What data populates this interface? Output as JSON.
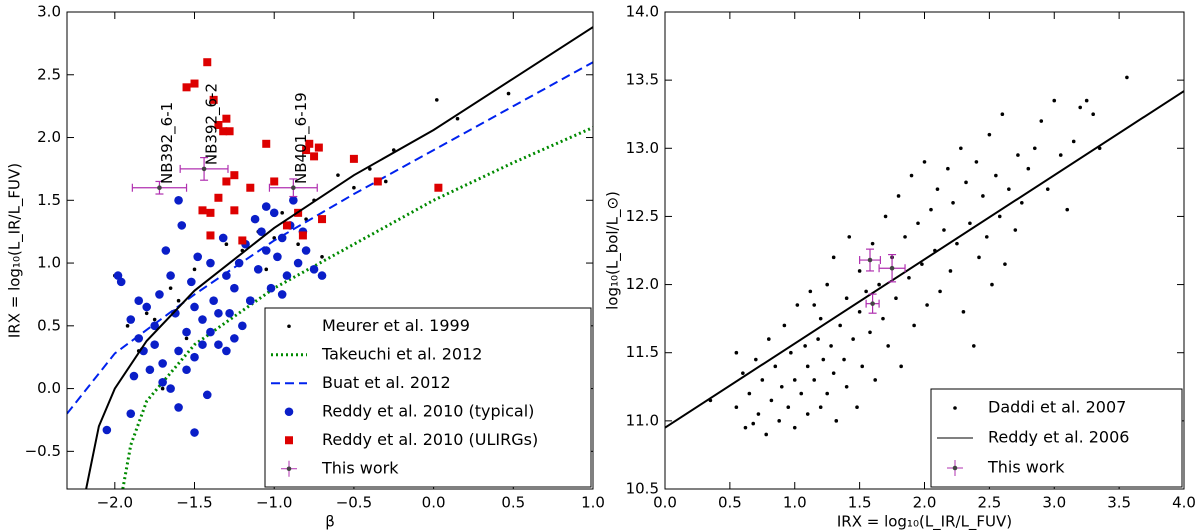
{
  "chart_data": [
    {
      "type": "scatter",
      "xlabel": "β",
      "ylabel": "IRX = log₁₀(L_IR/L_FUV)",
      "xlim": [
        -2.3,
        1.0
      ],
      "ylim": [
        -0.8,
        3.0
      ],
      "xticks": [
        {
          "value": -2.0,
          "label": "−2.0"
        },
        {
          "value": -1.5,
          "label": "−1.5"
        },
        {
          "value": -1.0,
          "label": "−1.0"
        },
        {
          "value": -0.5,
          "label": "−0.5"
        },
        {
          "value": 0.0,
          "label": "0.0"
        },
        0.5,
        {
          "value": 1.0,
          "label": "1.0"
        }
      ],
      "yticks": [
        {
          "value": -0.5,
          "label": "−0.5"
        },
        {
          "value": 0.0,
          "label": "0.0"
        },
        0.5,
        {
          "value": 1.0,
          "label": "1.0"
        },
        1.5,
        {
          "value": 2.0,
          "label": "2.0"
        },
        2.5,
        {
          "value": 3.0,
          "label": "3.0"
        }
      ],
      "legend": "lower right",
      "series": [
        {
          "name": "Meurer et al. 1999",
          "marker": "dot",
          "color": "#000000",
          "x": [
            -2.0,
            -1.92,
            -1.85,
            -1.75,
            -1.7,
            -1.6,
            -1.5,
            -1.4,
            -1.3,
            -1.2,
            -1.1,
            -1.0,
            -0.95,
            -0.9,
            -0.85,
            -0.8,
            -0.75,
            -0.6,
            -0.5,
            -0.4,
            -0.25,
            0.02,
            0.15,
            0.47,
            -1.8,
            -1.65,
            -1.55,
            -1.05,
            -0.7,
            -0.3
          ],
          "values": [
            0.9,
            0.5,
            0.3,
            0.55,
            0.0,
            0.7,
            0.95,
            1.0,
            1.15,
            1.1,
            1.25,
            1.2,
            1.4,
            1.3,
            1.15,
            1.35,
            1.5,
            1.7,
            1.6,
            1.75,
            1.9,
            2.3,
            2.15,
            2.35,
            0.6,
            0.8,
            0.4,
            0.95,
            1.05,
            1.65
          ]
        },
        {
          "name": "Takeuchi et al. 2012",
          "linestyle": "dotted",
          "color": "#008a00",
          "x": [
            -1.95,
            -1.9,
            -1.8,
            -1.5,
            -1.0,
            -0.5,
            0.0,
            0.5,
            1.0
          ],
          "values": [
            -0.8,
            -0.45,
            -0.1,
            0.35,
            0.8,
            1.15,
            1.5,
            1.8,
            2.08
          ]
        },
        {
          "name": "Buat et al. 2012",
          "linestyle": "dashed",
          "color": "#0022ee",
          "x": [
            -2.3,
            -2.0,
            -1.5,
            -1.0,
            -0.5,
            0.0,
            0.5,
            1.0
          ],
          "values": [
            -0.2,
            0.28,
            0.75,
            1.18,
            1.55,
            1.9,
            2.25,
            2.6
          ]
        },
        {
          "name": "Reddy et al. 2010 (typical)",
          "marker": "circle",
          "color": "#0a1ec8",
          "x": [
            -2.05,
            -1.98,
            -1.96,
            -1.9,
            -1.88,
            -1.85,
            -1.82,
            -1.8,
            -1.78,
            -1.75,
            -1.72,
            -1.7,
            -1.68,
            -1.65,
            -1.62,
            -1.6,
            -1.58,
            -1.55,
            -1.52,
            -1.5,
            -1.48,
            -1.45,
            -1.42,
            -1.4,
            -1.38,
            -1.35,
            -1.32,
            -1.3,
            -1.28,
            -1.25,
            -1.22,
            -1.2,
            -1.18,
            -1.15,
            -1.12,
            -1.1,
            -1.08,
            -1.05,
            -1.02,
            -1.0,
            -0.98,
            -0.95,
            -0.92,
            -0.9,
            -0.88,
            -0.85,
            -0.82,
            -0.8,
            -0.75,
            -0.7,
            -1.6,
            -1.7,
            -1.5,
            -1.4,
            -1.3,
            -1.9,
            -1.65,
            -1.55,
            -1.45,
            -1.35,
            -1.25,
            -1.15,
            -1.05,
            -0.95,
            -1.75,
            -1.85,
            -1.6,
            -1.5
          ],
          "values": [
            -0.33,
            0.9,
            0.85,
            0.55,
            0.1,
            0.4,
            0.3,
            0.65,
            0.15,
            0.5,
            0.75,
            0.2,
            1.1,
            0.0,
            0.6,
            -0.15,
            1.3,
            0.45,
            0.85,
            0.25,
            1.05,
            0.55,
            -0.05,
            1.0,
            0.7,
            0.35,
            1.2,
            0.9,
            0.6,
            0.8,
            1.0,
            0.5,
            1.15,
            0.7,
            1.35,
            0.95,
            1.25,
            1.1,
            0.8,
            1.4,
            1.05,
            1.2,
            0.9,
            1.3,
            1.5,
            1.0,
            1.25,
            1.1,
            0.95,
            0.9,
            0.3,
            0.05,
            0.65,
            0.45,
            0.3,
            -0.2,
            0.9,
            0.15,
            0.35,
            0.6,
            0.4,
            0.7,
            1.45,
            0.75,
            0.35,
            0.7,
            1.5,
            -0.35
          ]
        },
        {
          "name": "Reddy et al. 2010 (ULIRGs)",
          "marker": "square",
          "color": "#dd0000",
          "x": [
            -1.55,
            -1.5,
            -1.42,
            -1.38,
            -1.35,
            -1.32,
            -1.3,
            -1.28,
            -1.45,
            -1.4,
            -1.3,
            -1.25,
            -1.15,
            -1.05,
            -1.0,
            -0.92,
            -0.85,
            -0.8,
            -0.78,
            -0.75,
            -0.72,
            -0.5,
            -0.35,
            0.03,
            -1.4,
            -1.2,
            -1.35,
            -0.82,
            -1.25,
            -0.7
          ],
          "values": [
            2.4,
            2.43,
            2.6,
            2.3,
            2.1,
            2.05,
            2.15,
            2.05,
            1.42,
            1.4,
            1.65,
            1.7,
            1.6,
            1.95,
            1.65,
            1.3,
            1.4,
            1.9,
            1.95,
            1.85,
            1.92,
            1.83,
            1.65,
            1.6,
            1.22,
            1.18,
            1.52,
            1.22,
            1.42,
            1.35
          ]
        },
        {
          "name": "This work",
          "marker": "errorbar",
          "color": "#b030b0",
          "x": [
            -1.72,
            -1.44,
            -0.88
          ],
          "values": [
            1.6,
            1.75,
            1.6
          ],
          "xerr": [
            0.17,
            0.15,
            0.15
          ],
          "yerr": [
            0.05,
            0.09,
            0.07
          ]
        },
        {
          "name": "Meurer et al. 1999",
          "linestyle": "solid",
          "color": "#000000",
          "legend": false,
          "x": [
            -2.18,
            -2.1,
            -2.0,
            -1.8,
            -1.5,
            -1.0,
            -0.5,
            0.0,
            0.5,
            1.0
          ],
          "values": [
            -0.8,
            -0.3,
            0.0,
            0.38,
            0.78,
            1.28,
            1.7,
            2.06,
            2.47,
            2.88
          ]
        }
      ],
      "annotations": [
        {
          "text": "NB392_6-1",
          "x": -1.67,
          "y": 1.63,
          "color": "#b030b0"
        },
        {
          "text": "NB392_6-2",
          "x": -1.39,
          "y": 1.78,
          "color": "#b030b0"
        },
        {
          "text": "NB401_6-19",
          "x": -0.83,
          "y": 1.63,
          "color": "#b030b0"
        }
      ]
    },
    {
      "type": "scatter",
      "xlabel": "IRX = log₁₀(L_IR/L_FUV)",
      "ylabel": "log₁₀(L_bol/L_⊙)",
      "xlim": [
        0.0,
        4.0
      ],
      "ylim": [
        10.5,
        14.0
      ],
      "xticks": [
        {
          "value": 0.0,
          "label": "0.0"
        },
        0.5,
        {
          "value": 1.0,
          "label": "1.0"
        },
        1.5,
        {
          "value": 2.0,
          "label": "2.0"
        },
        2.5,
        {
          "value": 3.0,
          "label": "3.0"
        },
        3.5,
        {
          "value": 4.0,
          "label": "4.0"
        }
      ],
      "yticks": [
        10.5,
        {
          "value": 11.0,
          "label": "11.0"
        },
        11.5,
        {
          "value": 12.0,
          "label": "12.0"
        },
        12.5,
        {
          "value": 13.0,
          "label": "13.0"
        },
        13.5,
        {
          "value": 14.0,
          "label": "14.0"
        }
      ],
      "legend": "lower right",
      "series": [
        {
          "name": "Daddi et al. 2007",
          "marker": "dot",
          "color": "#000000",
          "x": [
            0.35,
            0.55,
            0.55,
            0.6,
            0.62,
            0.65,
            0.7,
            0.72,
            0.75,
            0.78,
            0.8,
            0.82,
            0.85,
            0.88,
            0.9,
            0.92,
            0.95,
            0.97,
            1.0,
            1.0,
            1.02,
            1.05,
            1.08,
            1.1,
            1.1,
            1.12,
            1.15,
            1.18,
            1.2,
            1.2,
            1.22,
            1.25,
            1.25,
            1.28,
            1.3,
            1.3,
            1.32,
            1.35,
            1.38,
            1.4,
            1.4,
            1.42,
            1.45,
            1.48,
            1.5,
            1.5,
            1.52,
            1.55,
            1.58,
            1.6,
            1.62,
            1.65,
            1.68,
            1.7,
            1.72,
            1.75,
            1.78,
            1.8,
            1.82,
            1.85,
            1.88,
            1.9,
            1.92,
            1.95,
            1.98,
            2.0,
            2.02,
            2.05,
            2.08,
            2.1,
            2.12,
            2.15,
            2.18,
            2.2,
            2.22,
            2.25,
            2.28,
            2.3,
            2.32,
            2.35,
            2.38,
            2.4,
            2.42,
            2.45,
            2.48,
            2.5,
            2.52,
            2.55,
            2.58,
            2.6,
            2.62,
            2.65,
            2.7,
            2.72,
            2.75,
            2.8,
            2.85,
            2.9,
            2.95,
            3.0,
            3.05,
            3.1,
            3.15,
            3.2,
            3.3,
            3.35,
            3.56,
            3.25,
            1.15,
            0.68
          ],
          "values": [
            11.15,
            11.5,
            11.1,
            11.35,
            10.95,
            11.2,
            11.45,
            11.05,
            11.3,
            10.9,
            11.6,
            11.15,
            11.4,
            11.0,
            11.25,
            11.7,
            11.1,
            11.5,
            11.3,
            10.95,
            11.85,
            11.2,
            11.55,
            11.05,
            11.4,
            11.95,
            11.3,
            11.6,
            11.1,
            11.75,
            11.45,
            12.0,
            11.2,
            11.55,
            11.35,
            12.2,
            11.0,
            11.7,
            11.45,
            11.9,
            11.25,
            12.35,
            11.6,
            11.1,
            11.8,
            12.1,
            11.4,
            11.95,
            11.65,
            12.3,
            11.3,
            12.0,
            11.75,
            12.5,
            11.55,
            12.2,
            11.9,
            12.65,
            11.4,
            12.35,
            12.05,
            12.8,
            11.7,
            12.45,
            12.15,
            12.9,
            11.85,
            12.55,
            12.25,
            12.7,
            11.95,
            12.4,
            12.85,
            12.1,
            12.6,
            12.3,
            13.0,
            11.8,
            12.75,
            12.45,
            11.55,
            12.9,
            12.2,
            12.65,
            12.35,
            13.1,
            12.0,
            12.8,
            12.5,
            13.25,
            12.15,
            12.7,
            12.4,
            12.95,
            12.6,
            12.85,
            13.0,
            13.2,
            12.7,
            13.35,
            12.95,
            12.55,
            13.05,
            13.3,
            13.25,
            13.0,
            13.52,
            13.35,
            11.85,
            10.98
          ]
        },
        {
          "name": "Reddy et al. 2006",
          "linestyle": "solid",
          "color": "#000000",
          "x": [
            0.0,
            4.0
          ],
          "values": [
            10.95,
            13.42
          ]
        },
        {
          "name": "This work",
          "marker": "errorbar",
          "color": "#b030b0",
          "x": [
            1.58,
            1.75,
            1.6
          ],
          "values": [
            12.18,
            12.12,
            11.86
          ],
          "xerr": [
            0.08,
            0.1,
            0.05
          ],
          "yerr": [
            0.08,
            0.1,
            0.07
          ]
        }
      ]
    }
  ]
}
